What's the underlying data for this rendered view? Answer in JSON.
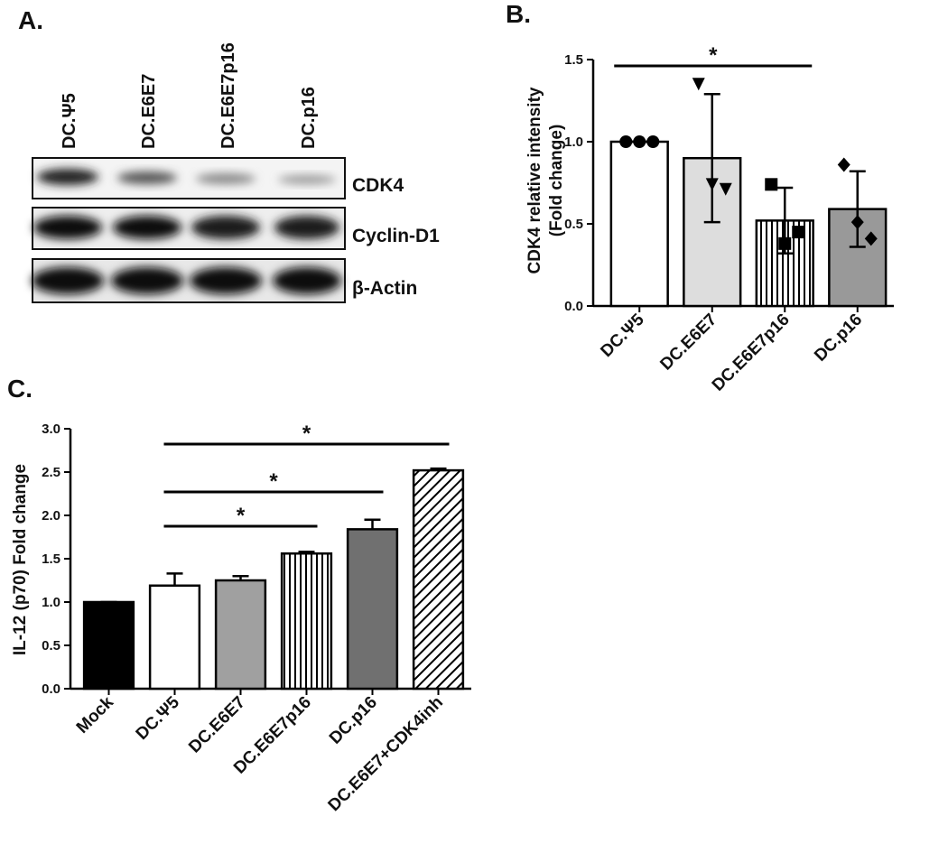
{
  "blot": {
    "label": "A.",
    "lanes": [
      "DC.Ψ5",
      "DC.E6E7",
      "DC.E6E7p16",
      "DC.p16"
    ],
    "rows": [
      "CDK4",
      "Cyclin-D1",
      "β-Actin"
    ]
  },
  "chart_data": [
    {
      "type": "bar",
      "label": "B.",
      "ylabel": [
        "CDK4 relative intensity",
        "(Fold change)"
      ],
      "categories": [
        "DC.Ψ5",
        "DC.E6E7",
        "DC.E6E7p16",
        "DC.p16"
      ],
      "values": [
        1.0,
        0.9,
        0.52,
        0.59
      ],
      "errors": [
        0,
        0.39,
        0.2,
        0.23
      ],
      "colors": [
        "#ffffff",
        "#dddddd",
        "vertical-hatch",
        "#999999"
      ],
      "points": [
        [
          1.0,
          1.0,
          1.0
        ],
        [
          1.35,
          0.74,
          0.71
        ],
        [
          0.74,
          0.38,
          0.45
        ],
        [
          0.86,
          0.51,
          0.41
        ]
      ],
      "markers": [
        "circle",
        "triangle-down",
        "square",
        "diamond"
      ],
      "ylim": [
        0,
        1.5
      ],
      "yticks": [
        {
          "value": 0,
          "label": "0.0"
        },
        0.5,
        {
          "value": 1,
          "label": "1.0"
        },
        1.5
      ],
      "annotations": [
        {
          "text": "*",
          "between": [
            "DC.Ψ5",
            "DC.E6E7p16"
          ]
        }
      ]
    },
    {
      "type": "bar",
      "label": "C.",
      "ylabel": [
        "IL-12 (p70) Fold change"
      ],
      "categories": [
        "Mock",
        "DC.Ψ5",
        "DC.E6E7",
        "DC.E6E7p16",
        "DC.p16",
        "DC.E6E7+CDK4inh"
      ],
      "values": [
        1.0,
        1.19,
        1.25,
        1.56,
        1.84,
        2.52
      ],
      "errors": [
        0,
        0.14,
        0.05,
        0.02,
        0.11,
        0.02
      ],
      "colors": [
        "#000000",
        "#ffffff",
        "#a0a0a0",
        "vertical-hatch",
        "#707070",
        "diagonal-hatch"
      ],
      "ylim": [
        0,
        3
      ],
      "yticks": [
        {
          "value": 0,
          "label": "0.0"
        },
        0.5,
        {
          "value": 1,
          "label": "1.0"
        },
        1.5,
        {
          "value": 2,
          "label": "2.0"
        },
        2.5,
        {
          "value": 3,
          "label": "3.0"
        }
      ],
      "annotations": [
        {
          "text": "*",
          "between": [
            "DC.Ψ5",
            "DC.E6E7p16"
          ]
        },
        {
          "text": "*",
          "between": [
            "DC.Ψ5",
            "DC.p16"
          ]
        },
        {
          "text": "*",
          "between": [
            "DC.Ψ5",
            "DC.E6E7+CDK4inh"
          ]
        }
      ]
    }
  ]
}
